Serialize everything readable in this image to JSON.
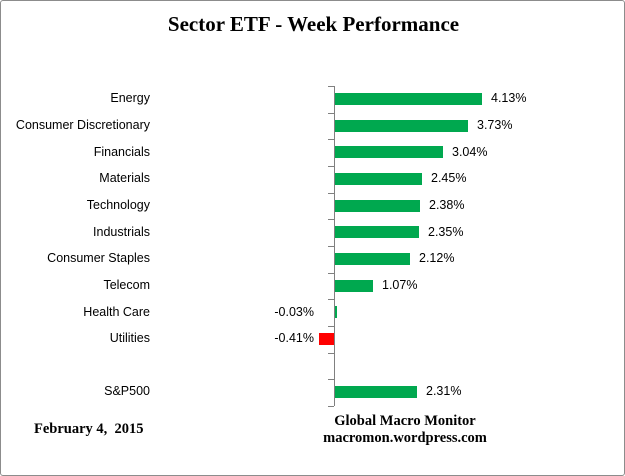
{
  "chart_data": {
    "type": "bar",
    "orientation": "horizontal",
    "title": "Sector ETF - Week Performance",
    "unit": "%",
    "categories": [
      "Energy",
      "Consumer Discretionary",
      "Financials",
      "Materials",
      "Technology",
      "Industrials",
      "Consumer Staples",
      "Telecom",
      "Health Care",
      "Utilities",
      "S&P500"
    ],
    "values": [
      4.13,
      3.73,
      3.04,
      2.45,
      2.38,
      2.35,
      2.12,
      1.07,
      -0.03,
      -0.41,
      2.31
    ],
    "value_labels": [
      "4.13%",
      "3.73%",
      "3.04%",
      "2.45%",
      "2.38%",
      "2.35%",
      "2.12%",
      "1.07%",
      "-0.03%",
      "-0.41%",
      "2.31%"
    ],
    "bar_colors": [
      "#00A84F",
      "#00A84F",
      "#00A84F",
      "#00A84F",
      "#00A84F",
      "#00A84F",
      "#00A84F",
      "#00A84F",
      "#00A84F",
      "#FF0000",
      "#00A84F"
    ],
    "legend": false,
    "grid": false,
    "value_axis_labels_visible": false,
    "layout": {
      "spacer_after_index": 9,
      "zero_line": true,
      "tick_marks": true
    }
  },
  "footer": {
    "date": "February 4,  2015",
    "attribution_line1": "Global Macro Monitor",
    "attribution_line2": "macromon.wordpress.com"
  },
  "colors": {
    "positive_bar": "#00A84F",
    "negative_bar": "#FF0000",
    "axis": "#808080",
    "text": "#000000",
    "border": "#8C8C8C"
  }
}
